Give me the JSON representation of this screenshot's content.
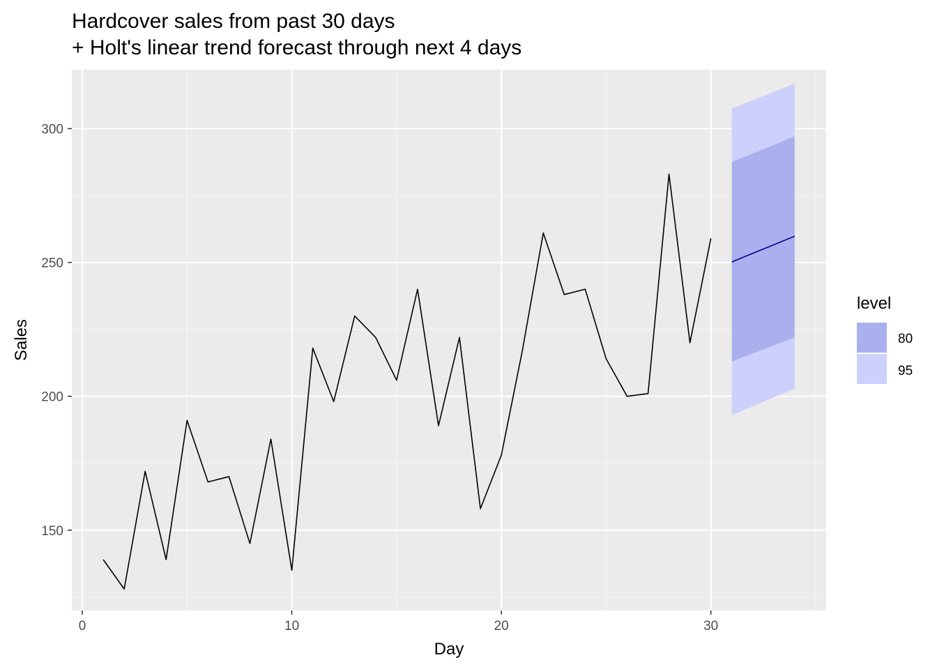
{
  "chart_data": {
    "type": "line",
    "title": [
      "Hardcover sales from past 30 days",
      "+ Holt's linear trend forecast through next 4 days"
    ],
    "xlabel": "Day",
    "ylabel": "Sales",
    "xlim": [
      -0.5,
      35.5
    ],
    "ylim": [
      120,
      322
    ],
    "x_ticks": [
      0,
      10,
      20,
      30
    ],
    "x_minor": [
      5,
      15,
      25,
      35
    ],
    "y_ticks": [
      150,
      200,
      250,
      300
    ],
    "y_minor": [
      125,
      175,
      225,
      275
    ],
    "grid": true,
    "observed": {
      "x": [
        1,
        2,
        3,
        4,
        5,
        6,
        7,
        8,
        9,
        10,
        11,
        12,
        13,
        14,
        15,
        16,
        17,
        18,
        19,
        20,
        21,
        22,
        23,
        24,
        25,
        26,
        27,
        28,
        29,
        30
      ],
      "y": [
        139,
        128,
        172,
        139,
        191,
        168,
        170,
        145,
        184,
        135,
        218,
        198,
        230,
        222,
        206,
        240,
        189,
        222,
        158,
        178,
        217,
        261,
        238,
        240,
        214,
        200,
        201,
        283,
        220,
        259
      ],
      "color": "#000000"
    },
    "forecast": {
      "x": [
        31,
        32,
        33,
        34
      ],
      "mean": [
        250.2,
        253.4,
        256.6,
        259.8
      ],
      "lo80": [
        213,
        216,
        219,
        222
      ],
      "hi80": [
        287.5,
        290.7,
        293.9,
        297.1
      ],
      "lo95": [
        193,
        196.3,
        199.6,
        202.9
      ],
      "hi95": [
        307.5,
        310.6,
        313.7,
        316.8
      ],
      "color": "#00008b"
    },
    "legend": {
      "title": "level",
      "placement": "right",
      "items": [
        {
          "label": "80",
          "color": "#aab0ee"
        },
        {
          "label": "95",
          "color": "#ccd0fb"
        }
      ]
    }
  }
}
